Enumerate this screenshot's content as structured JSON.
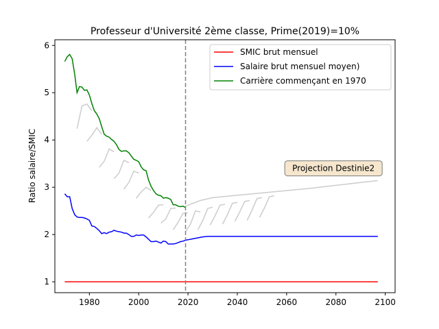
{
  "chart_data": {
    "type": "line",
    "title": "Professeur d'Université 2ème classe, Prime(2019)=10%",
    "xlabel": "",
    "ylabel": "Ratio salaire/SMIC",
    "xlim": [
      1966,
      2104
    ],
    "ylim": [
      0.77,
      6.12
    ],
    "xticks": [
      1980,
      2000,
      2020,
      2040,
      2060,
      2080,
      2100
    ],
    "yticks": [
      1,
      2,
      3,
      4,
      5,
      6
    ],
    "grid": false,
    "legend_position": "upper right",
    "vline": {
      "x": 2019,
      "color": "#808080",
      "style": "dashed"
    },
    "annotation": {
      "text": "Projection Destinie2",
      "x": 2079,
      "y": 3.4
    },
    "series": [
      {
        "name": "SMIC brut mensuel",
        "color": "#ff0000",
        "x": [
          1970,
          2097
        ],
        "y": [
          1.0,
          1.0
        ]
      },
      {
        "name": "Salaire brut mensuel moyen)",
        "color": "#0000ff",
        "x": [
          1970,
          1971,
          1972,
          1973,
          1974,
          1975,
          1976,
          1977,
          1978,
          1979,
          1980,
          1981,
          1982,
          1983,
          1984,
          1985,
          1986,
          1987,
          1988,
          1989,
          1990,
          1991,
          1992,
          1993,
          1994,
          1995,
          1996,
          1997,
          1998,
          1999,
          2000,
          2001,
          2002,
          2003,
          2004,
          2005,
          2006,
          2007,
          2008,
          2009,
          2010,
          2011,
          2012,
          2013,
          2014,
          2015,
          2016,
          2017,
          2018,
          2019,
          2020,
          2022,
          2024,
          2026,
          2028,
          2030,
          2040,
          2060,
          2080,
          2097
        ],
        "y": [
          2.86,
          2.8,
          2.8,
          2.55,
          2.42,
          2.37,
          2.36,
          2.36,
          2.35,
          2.33,
          2.3,
          2.18,
          2.17,
          2.13,
          2.08,
          2.02,
          2.04,
          2.02,
          2.05,
          2.06,
          2.09,
          2.07,
          2.06,
          2.05,
          2.03,
          2.03,
          2.0,
          1.96,
          1.96,
          1.99,
          1.98,
          1.99,
          1.99,
          1.95,
          1.9,
          1.85,
          1.85,
          1.86,
          1.84,
          1.82,
          1.86,
          1.85,
          1.8,
          1.8,
          1.8,
          1.81,
          1.83,
          1.85,
          1.86,
          1.88,
          1.89,
          1.91,
          1.93,
          1.95,
          1.96,
          1.96,
          1.96,
          1.96,
          1.96,
          1.96
        ]
      },
      {
        "name": "Carrière commençant en 1970",
        "color": "#008000",
        "x": [
          1970,
          1971,
          1972,
          1973,
          1974,
          1975,
          1976,
          1977,
          1978,
          1979,
          1980,
          1981,
          1982,
          1983,
          1984,
          1985,
          1986,
          1987,
          1988,
          1989,
          1990,
          1991,
          1992,
          1993,
          1994,
          1995,
          1996,
          1997,
          1998,
          1999,
          2000,
          2001,
          2002,
          2003,
          2004,
          2005,
          2006,
          2007,
          2008,
          2009,
          2010,
          2011,
          2012,
          2013,
          2014,
          2015,
          2016,
          2017,
          2018,
          2019
        ],
        "y": [
          5.66,
          5.76,
          5.81,
          5.72,
          5.4,
          5.0,
          5.13,
          5.12,
          5.05,
          5.06,
          4.95,
          4.77,
          4.62,
          4.55,
          4.45,
          4.28,
          4.12,
          4.08,
          4.06,
          4.01,
          3.97,
          3.9,
          3.8,
          3.76,
          3.77,
          3.77,
          3.73,
          3.66,
          3.59,
          3.57,
          3.54,
          3.43,
          3.37,
          3.35,
          3.15,
          3.02,
          2.93,
          2.86,
          2.83,
          2.82,
          2.77,
          2.78,
          2.77,
          2.74,
          2.63,
          2.63,
          2.6,
          2.59,
          2.6,
          2.57
        ]
      }
    ],
    "other_careers": {
      "color": "#cccccc",
      "lines": [
        {
          "x": [
            1975,
            1977,
            1979,
            1981
          ],
          "y": [
            4.24,
            4.72,
            4.76,
            4.62
          ]
        },
        {
          "x": [
            1979,
            1981,
            1983,
            1985
          ],
          "y": [
            3.97,
            4.1,
            4.26,
            4.12
          ]
        },
        {
          "x": [
            1984,
            1986,
            1988,
            1990
          ],
          "y": [
            3.42,
            3.55,
            3.81,
            3.75
          ]
        },
        {
          "x": [
            1990,
            1992,
            1994,
            1996
          ],
          "y": [
            3.18,
            3.3,
            3.57,
            3.52
          ]
        },
        {
          "x": [
            1994,
            1996,
            1998,
            2000
          ],
          "y": [
            2.96,
            3.1,
            3.34,
            3.3
          ]
        },
        {
          "x": [
            1999,
            2001,
            2003,
            2005
          ],
          "y": [
            2.77,
            2.9,
            3.0,
            2.93
          ]
        },
        {
          "x": [
            2004,
            2006,
            2008,
            2010
          ],
          "y": [
            2.35,
            2.47,
            2.62,
            2.63
          ]
        },
        {
          "x": [
            2009,
            2011,
            2013,
            2015
          ],
          "y": [
            2.24,
            2.33,
            2.55,
            2.56
          ]
        },
        {
          "x": [
            2014,
            2016,
            2018,
            2020
          ],
          "y": [
            2.1,
            2.26,
            2.45,
            2.46
          ]
        },
        {
          "x": [
            2019,
            2021,
            2023,
            2025
          ],
          "y": [
            2.06,
            2.22,
            2.5,
            2.48
          ]
        },
        {
          "x": [
            2024,
            2026,
            2028,
            2030
          ],
          "y": [
            2.1,
            2.3,
            2.55,
            2.58
          ]
        },
        {
          "x": [
            2029,
            2031,
            2033,
            2035
          ],
          "y": [
            2.2,
            2.4,
            2.62,
            2.64
          ]
        },
        {
          "x": [
            2034,
            2036,
            2038,
            2040
          ],
          "y": [
            2.22,
            2.42,
            2.66,
            2.68
          ]
        },
        {
          "x": [
            2039,
            2041,
            2043,
            2045
          ],
          "y": [
            2.28,
            2.48,
            2.7,
            2.72
          ]
        },
        {
          "x": [
            2044,
            2046,
            2048,
            2050
          ],
          "y": [
            2.3,
            2.52,
            2.76,
            2.78
          ]
        },
        {
          "x": [
            2049,
            2051,
            2053,
            2055
          ],
          "y": [
            2.36,
            2.56,
            2.8,
            2.82
          ]
        },
        {
          "x": [
            2019,
            2025,
            2030,
            2040,
            2050,
            2060,
            2070,
            2080,
            2090,
            2097
          ],
          "y": [
            2.6,
            2.72,
            2.78,
            2.83,
            2.88,
            2.93,
            2.98,
            3.04,
            3.1,
            3.14
          ]
        }
      ]
    }
  }
}
